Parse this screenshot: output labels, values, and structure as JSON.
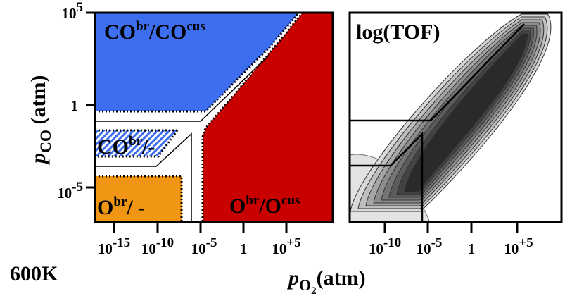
{
  "colors": {
    "co_phase": "#3e6ef0",
    "o_phase": "#c80000",
    "o_br_phase": "#f09614",
    "hatch": "#3e6ef0",
    "boundary": "#000000",
    "tof_light": "#d8d8d8",
    "tof_dark": "#2a2a2a"
  },
  "y_axis": {
    "base": "p",
    "subscript": "CO",
    "unit": "(atm)",
    "ticks": [
      "10",
      "1",
      "10"
    ],
    "tick_exponents": [
      "5",
      "",
      "-5"
    ]
  },
  "x_axis": {
    "base": "p",
    "subscript": "O",
    "subscript2": "2",
    "unit": "(atm)"
  },
  "temperature_label": "600K",
  "chart_data": [
    {
      "type": "heatmap",
      "panel": "phase-diagram",
      "x_scale": "log",
      "y_scale": "log",
      "xlim": [
        1e-19,
        1000000000000.0
      ],
      "ylim": [
        1e-08,
        100000.0
      ],
      "x_ticks": [
        "10",
        "10",
        "10",
        "1",
        "10"
      ],
      "x_tick_exponents": [
        "-15",
        "-10",
        "-5",
        "",
        "+5"
      ],
      "regions": [
        {
          "label": "CO",
          "sup1": "br",
          "mid": "/CO",
          "sup2": "cus",
          "color": "co_phase"
        },
        {
          "label": "CO",
          "sup1": "br",
          "mid": "/-",
          "sup2": "",
          "color": "hatch"
        },
        {
          "label": "O",
          "sup1": "br",
          "mid": "/ -",
          "sup2": "",
          "color": "o_br_phase"
        },
        {
          "label": "O",
          "sup1": "br",
          "mid": "/O",
          "sup2": "cus",
          "color": "o_phase"
        }
      ]
    },
    {
      "type": "heatmap",
      "panel": "tof-contour",
      "title": "log(TOF)",
      "x_scale": "log",
      "y_scale": "log",
      "xlim": [
        1e-14,
        10000000000.0
      ],
      "ylim": [
        1e-08,
        100000.0
      ],
      "x_ticks": [
        "10",
        "10",
        "1",
        "10"
      ],
      "x_tick_exponents": [
        "-10",
        "-5",
        "",
        "+5"
      ]
    }
  ]
}
